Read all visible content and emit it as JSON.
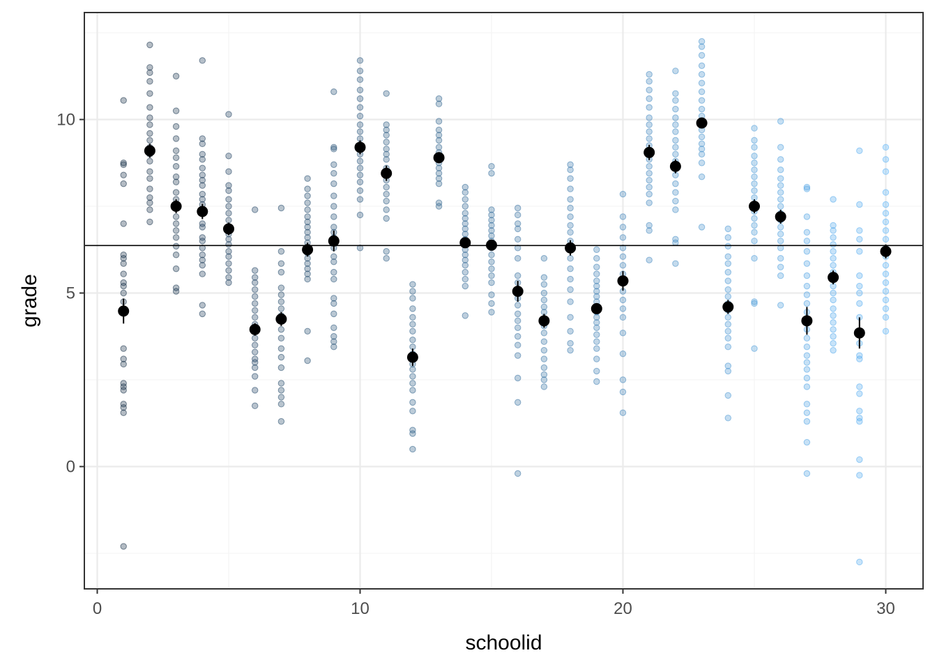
{
  "chart_data": {
    "type": "scatter",
    "title": "",
    "xlabel": "schoolid",
    "ylabel": "grade",
    "xlim": [
      -0.5,
      31.4
    ],
    "ylim": [
      -3.6,
      12.95
    ],
    "x_ticks": [
      0,
      10,
      20,
      30
    ],
    "x_tick_labels": [
      "0",
      "10",
      "20",
      "30"
    ],
    "y_ticks": [
      0,
      5,
      10
    ],
    "y_tick_labels": [
      "0",
      "5",
      "10"
    ],
    "grid": true,
    "legend": "none",
    "hline": 6.37,
    "colors": {
      "low": "#132b43",
      "high": "#56b1f7",
      "mean_point": "#000000",
      "hline": "#000000"
    },
    "schools": [
      {
        "id": 1,
        "mean": 4.48,
        "se": 0.36,
        "grades": [
          -2.3,
          1.55,
          1.7,
          1.8,
          2.2,
          2.3,
          2.4,
          2.95,
          3.1,
          3.4,
          4.75,
          5.0,
          5.2,
          5.3,
          5.55,
          5.85,
          6.0,
          6.1,
          7.0,
          8.15,
          8.4,
          8.7,
          8.75,
          10.55
        ]
      },
      {
        "id": 2,
        "mean": 9.1,
        "se": 0.2,
        "grades": [
          7.05,
          7.4,
          7.6,
          7.75,
          8.0,
          8.3,
          8.5,
          8.8,
          9.0,
          9.2,
          9.4,
          9.6,
          9.85,
          10.05,
          10.35,
          10.75,
          11.1,
          11.35,
          11.5,
          12.15
        ]
      },
      {
        "id": 3,
        "mean": 7.5,
        "se": 0.2,
        "grades": [
          5.05,
          5.15,
          5.7,
          6.1,
          6.35,
          6.6,
          6.8,
          7.0,
          7.2,
          7.45,
          7.7,
          7.9,
          8.2,
          8.35,
          8.65,
          8.9,
          9.1,
          9.45,
          9.8,
          10.25,
          11.25
        ]
      },
      {
        "id": 4,
        "mean": 7.35,
        "se": 0.22,
        "grades": [
          4.4,
          4.65,
          5.55,
          5.8,
          5.95,
          6.1,
          6.3,
          6.5,
          6.6,
          6.9,
          7.0,
          7.3,
          7.55,
          7.7,
          7.85,
          8.1,
          8.25,
          8.4,
          8.6,
          8.85,
          9.0,
          9.3,
          9.45,
          11.7
        ]
      },
      {
        "id": 5,
        "mean": 6.85,
        "se": 0.18,
        "grades": [
          5.3,
          5.45,
          5.65,
          5.85,
          6.05,
          6.2,
          6.4,
          6.55,
          6.7,
          6.9,
          7.1,
          7.3,
          7.5,
          7.7,
          7.95,
          8.1,
          8.5,
          8.95,
          10.15
        ]
      },
      {
        "id": 6,
        "mean": 3.95,
        "se": 0.18,
        "grades": [
          1.75,
          2.2,
          2.6,
          2.85,
          3.0,
          3.1,
          3.3,
          3.5,
          3.7,
          3.9,
          4.1,
          4.3,
          4.5,
          4.7,
          4.9,
          5.1,
          5.3,
          5.45,
          5.65,
          7.4
        ]
      },
      {
        "id": 7,
        "mean": 4.25,
        "se": 0.2,
        "grades": [
          1.3,
          1.8,
          2.0,
          2.2,
          2.4,
          2.85,
          3.15,
          3.4,
          3.7,
          3.95,
          4.2,
          4.35,
          4.55,
          4.75,
          4.95,
          5.15,
          5.6,
          5.85,
          6.2,
          7.45
        ]
      },
      {
        "id": 8,
        "mean": 6.25,
        "se": 0.2,
        "grades": [
          3.05,
          3.9,
          5.4,
          5.55,
          5.7,
          5.85,
          6.0,
          6.15,
          6.3,
          6.45,
          6.6,
          6.75,
          6.9,
          7.05,
          7.2,
          7.4,
          7.6,
          7.8,
          8.0,
          8.3
        ]
      },
      {
        "id": 9,
        "mean": 6.5,
        "se": 0.3,
        "grades": [
          3.45,
          3.6,
          3.75,
          4.0,
          4.4,
          4.7,
          4.85,
          5.4,
          5.6,
          5.9,
          6.05,
          6.3,
          6.6,
          6.75,
          6.9,
          7.2,
          7.5,
          7.8,
          8.15,
          8.45,
          8.7,
          9.15,
          9.2,
          10.8
        ]
      },
      {
        "id": 10,
        "mean": 9.2,
        "se": 0.2,
        "grades": [
          6.3,
          7.25,
          7.7,
          7.95,
          8.2,
          8.4,
          8.6,
          8.8,
          9.0,
          9.2,
          9.45,
          9.65,
          9.85,
          10.1,
          10.35,
          10.6,
          10.85,
          11.15,
          11.4,
          11.7
        ]
      },
      {
        "id": 11,
        "mean": 8.45,
        "se": 0.22,
        "grades": [
          6.0,
          6.2,
          7.15,
          7.4,
          7.65,
          7.85,
          8.05,
          8.25,
          8.45,
          8.6,
          8.85,
          9.0,
          9.15,
          9.35,
          9.55,
          9.7,
          9.85,
          10.75
        ]
      },
      {
        "id": 12,
        "mean": 3.15,
        "se": 0.25,
        "grades": [
          0.5,
          0.95,
          1.05,
          1.6,
          1.85,
          2.2,
          2.4,
          2.6,
          2.8,
          2.95,
          3.1,
          3.25,
          3.45,
          3.65,
          3.9,
          4.1,
          4.3,
          4.55,
          4.85,
          5.05,
          5.25
        ]
      },
      {
        "id": 13,
        "mean": 8.9,
        "se": 0.15,
        "grades": [
          7.5,
          7.6,
          8.15,
          8.3,
          8.45,
          8.6,
          8.75,
          8.9,
          9.05,
          9.2,
          9.4,
          9.55,
          9.7,
          9.95,
          10.45,
          10.6
        ]
      },
      {
        "id": 14,
        "mean": 6.45,
        "se": 0.15,
        "grades": [
          4.35,
          5.2,
          5.4,
          5.6,
          5.8,
          5.95,
          6.1,
          6.25,
          6.4,
          6.55,
          6.7,
          6.85,
          7.0,
          7.15,
          7.3,
          7.5,
          7.7,
          7.9,
          8.05
        ]
      },
      {
        "id": 15,
        "mean": 6.38,
        "se": 0.15,
        "grades": [
          4.45,
          4.7,
          4.95,
          5.3,
          5.5,
          5.7,
          5.9,
          6.1,
          6.3,
          6.5,
          6.65,
          6.8,
          6.95,
          7.1,
          7.25,
          7.4,
          8.45,
          8.65
        ]
      },
      {
        "id": 16,
        "mean": 5.05,
        "se": 0.3,
        "grades": [
          -0.2,
          1.85,
          2.55,
          3.2,
          3.5,
          3.75,
          4.0,
          4.2,
          4.4,
          4.65,
          4.85,
          5.05,
          5.3,
          5.5,
          6.0,
          6.3,
          6.55,
          6.85,
          7.0,
          7.25,
          7.45
        ]
      },
      {
        "id": 17,
        "mean": 4.2,
        "se": 0.2,
        "grades": [
          2.3,
          2.5,
          2.65,
          2.85,
          3.1,
          3.35,
          3.6,
          3.85,
          4.05,
          4.25,
          4.45,
          4.6,
          4.8,
          5.0,
          5.25,
          5.45,
          6.0
        ]
      },
      {
        "id": 18,
        "mean": 6.3,
        "se": 0.22,
        "grades": [
          3.35,
          3.55,
          3.9,
          4.3,
          4.75,
          5.1,
          5.4,
          5.7,
          6.0,
          6.25,
          6.5,
          6.75,
          6.95,
          7.2,
          7.45,
          7.7,
          8.0,
          8.3,
          8.55,
          8.7
        ]
      },
      {
        "id": 19,
        "mean": 4.55,
        "se": 0.15,
        "grades": [
          2.45,
          2.75,
          3.1,
          3.4,
          3.6,
          3.8,
          4.0,
          4.15,
          4.3,
          4.45,
          4.6,
          4.75,
          4.9,
          5.05,
          5.2,
          5.35,
          5.55,
          5.75,
          6.0,
          6.25
        ]
      },
      {
        "id": 20,
        "mean": 5.35,
        "se": 0.28,
        "grades": [
          1.55,
          2.15,
          2.5,
          3.25,
          3.85,
          4.3,
          4.55,
          4.8,
          5.05,
          5.3,
          5.55,
          5.8,
          6.05,
          6.3,
          6.6,
          6.9,
          7.2,
          7.85
        ]
      },
      {
        "id": 21,
        "mean": 9.05,
        "se": 0.22,
        "grades": [
          5.95,
          6.8,
          6.95,
          7.6,
          7.85,
          8.05,
          8.25,
          8.45,
          8.65,
          8.85,
          9.05,
          9.25,
          9.45,
          9.65,
          9.85,
          10.05,
          10.35,
          10.6,
          10.85,
          11.1,
          11.3
        ]
      },
      {
        "id": 22,
        "mean": 8.65,
        "se": 0.2,
        "grades": [
          5.85,
          6.45,
          6.55,
          7.4,
          7.65,
          7.9,
          8.15,
          8.4,
          8.6,
          8.8,
          9.0,
          9.2,
          9.4,
          9.65,
          9.85,
          10.05,
          10.3,
          10.55,
          10.75,
          11.4
        ]
      },
      {
        "id": 23,
        "mean": 9.9,
        "se": 0.15,
        "grades": [
          6.9,
          8.35,
          8.75,
          9.0,
          9.15,
          9.3,
          9.5,
          9.7,
          9.9,
          10.1,
          10.3,
          10.55,
          10.8,
          11.05,
          11.3,
          11.55,
          11.85,
          12.1,
          12.25
        ]
      },
      {
        "id": 24,
        "mean": 4.6,
        "se": 0.2,
        "grades": [
          1.4,
          2.05,
          2.75,
          2.9,
          3.45,
          3.7,
          3.9,
          4.1,
          4.3,
          4.5,
          4.7,
          4.9,
          5.1,
          5.35,
          5.6,
          5.85,
          6.05,
          6.35,
          6.6,
          6.85
        ]
      },
      {
        "id": 25,
        "mean": 7.5,
        "se": 0.2,
        "grades": [
          3.4,
          4.7,
          4.75,
          6.0,
          6.5,
          6.75,
          6.95,
          7.15,
          7.35,
          7.55,
          7.75,
          7.95,
          8.15,
          8.35,
          8.55,
          8.75,
          8.95,
          9.2,
          9.4,
          9.75
        ]
      },
      {
        "id": 26,
        "mean": 7.2,
        "se": 0.2,
        "grades": [
          4.65,
          5.5,
          5.75,
          6.0,
          6.3,
          6.5,
          6.7,
          6.9,
          7.1,
          7.3,
          7.5,
          7.7,
          7.9,
          8.1,
          8.3,
          8.55,
          8.85,
          9.2,
          9.95
        ]
      },
      {
        "id": 27,
        "mean": 4.2,
        "se": 0.4,
        "grades": [
          -0.2,
          0.7,
          1.3,
          1.55,
          1.8,
          2.3,
          2.55,
          2.8,
          3.0,
          3.2,
          3.45,
          3.7,
          3.95,
          4.2,
          4.45,
          4.7,
          4.95,
          5.2,
          5.5,
          5.85,
          6.2,
          6.5,
          6.75,
          7.2,
          8.0,
          8.05
        ]
      },
      {
        "id": 28,
        "mean": 5.45,
        "se": 0.2,
        "grades": [
          3.35,
          3.55,
          3.75,
          3.95,
          4.15,
          4.35,
          4.55,
          4.8,
          5.0,
          5.2,
          5.4,
          5.6,
          5.8,
          6.0,
          6.2,
          6.4,
          6.6,
          6.8,
          6.95,
          7.7
        ]
      },
      {
        "id": 29,
        "mean": 3.85,
        "se": 0.45,
        "grades": [
          -2.75,
          -0.25,
          0.2,
          1.3,
          1.4,
          1.6,
          2.1,
          2.3,
          3.1,
          3.2,
          3.55,
          3.85,
          4.3,
          4.7,
          5.0,
          5.2,
          5.5,
          6.2,
          6.55,
          6.8,
          7.55,
          9.1
        ]
      },
      {
        "id": 30,
        "mean": 6.2,
        "se": 0.2,
        "grades": [
          3.9,
          4.3,
          4.55,
          4.8,
          5.05,
          5.3,
          5.55,
          5.8,
          6.05,
          6.3,
          6.55,
          6.8,
          7.05,
          7.3,
          7.55,
          7.9,
          8.5,
          8.85,
          9.2
        ]
      }
    ]
  }
}
